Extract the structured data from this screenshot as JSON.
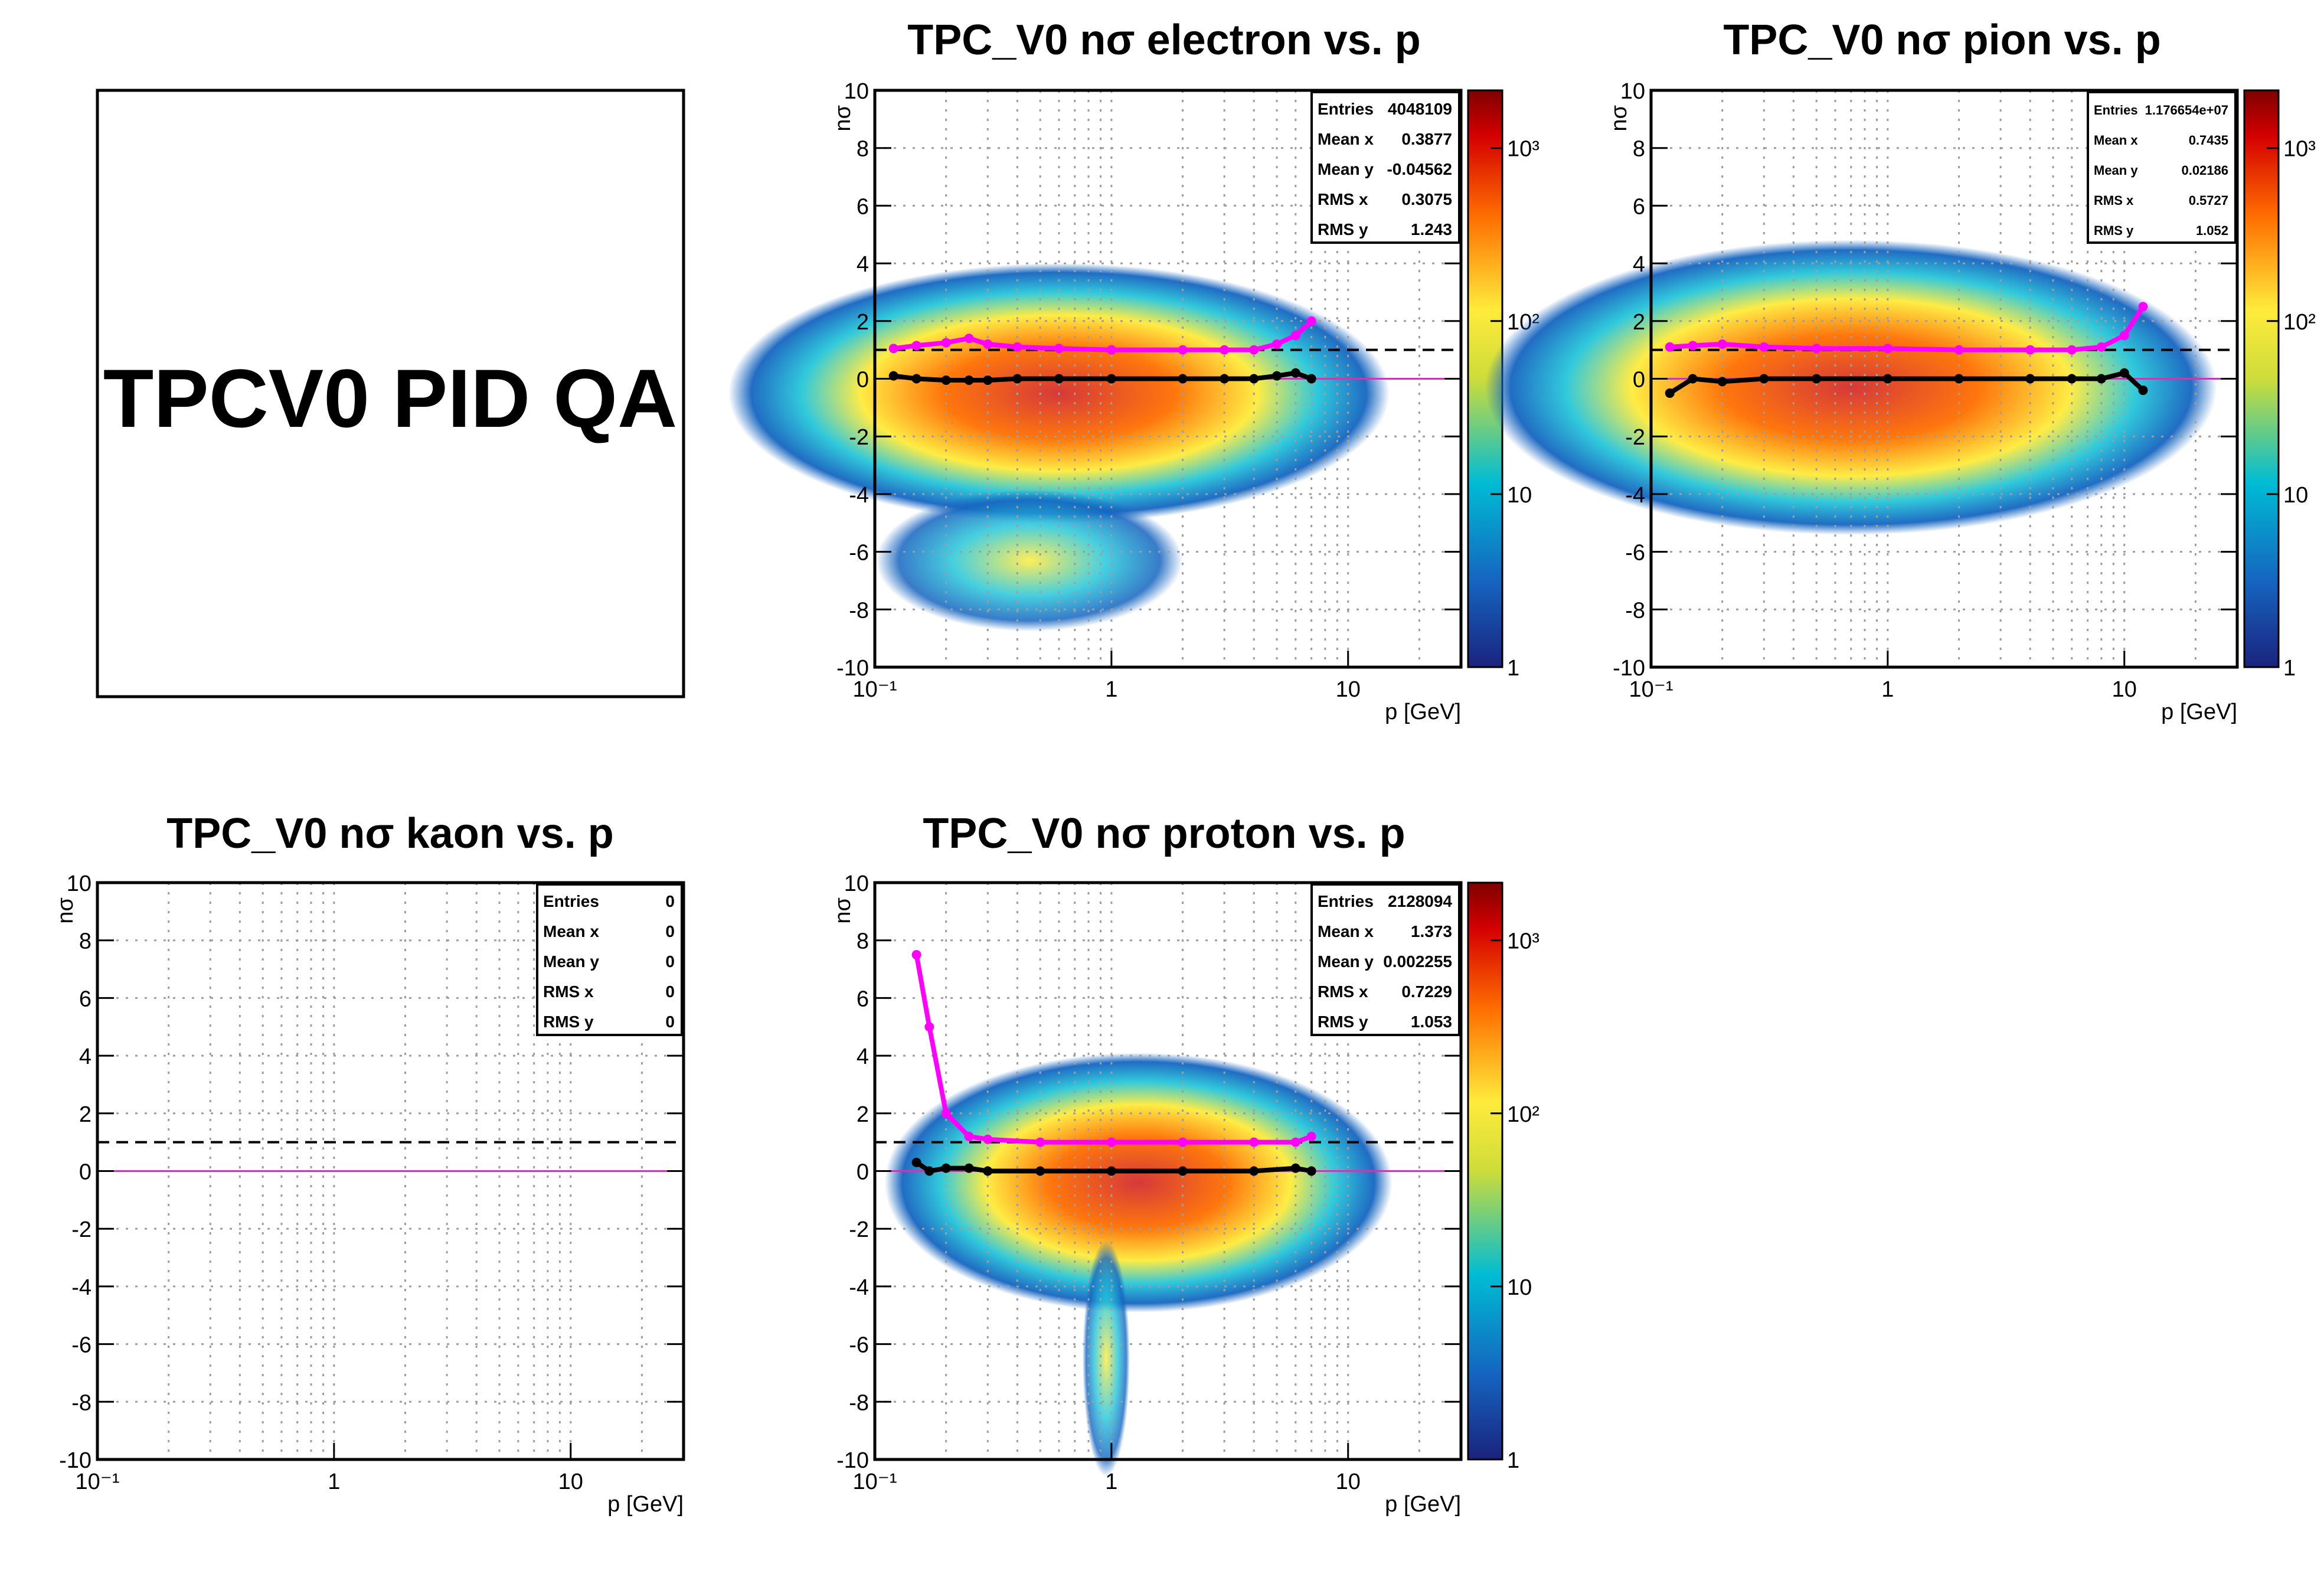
{
  "page_title_box": {
    "text": "TPCV0 PID QA"
  },
  "chart_data": [
    {
      "type": "heatmap",
      "id": "electron",
      "title": "TPC_V0 nσ electron vs. p",
      "xlabel": "p [GeV]",
      "ylabel": "nσ",
      "xscale": "log",
      "xlim": [
        0.1,
        30
      ],
      "ylim": [
        -10,
        10
      ],
      "x_tick_labels": [
        "10⁻¹",
        "1",
        "10"
      ],
      "y_tick_labels": [
        "-10",
        "-8",
        "-6",
        "-4",
        "-2",
        "0",
        "2",
        "4",
        "6",
        "8",
        "10"
      ],
      "grid": true,
      "colorbar": {
        "scale": "log",
        "labels": [
          "1",
          "10",
          "10²",
          "10³"
        ]
      },
      "reference_line_y": 1,
      "stats": [
        {
          "label": "Entries",
          "value": "4048109"
        },
        {
          "label": "Mean x",
          "value": "0.3877"
        },
        {
          "label": "Mean y",
          "value": "-0.04562"
        },
        {
          "label": "RMS x",
          "value": "0.3075"
        },
        {
          "label": "RMS y",
          "value": "1.243"
        }
      ],
      "series": [
        {
          "color": "#ff00ff",
          "x": [
            0.12,
            0.15,
            0.2,
            0.25,
            0.3,
            0.4,
            0.6,
            1,
            2,
            3,
            4,
            5,
            6,
            7
          ],
          "y": [
            1.05,
            1.15,
            1.25,
            1.4,
            1.2,
            1.1,
            1.05,
            1.0,
            1.0,
            1.0,
            1.0,
            1.2,
            1.5,
            2.0
          ]
        },
        {
          "color": "#000000",
          "x": [
            0.12,
            0.15,
            0.2,
            0.25,
            0.3,
            0.4,
            0.6,
            1,
            2,
            3,
            4,
            5,
            6,
            7
          ],
          "y": [
            0.1,
            0.0,
            -0.05,
            -0.05,
            -0.05,
            0.0,
            0.0,
            0.0,
            0.0,
            0.0,
            0.0,
            0.1,
            0.2,
            0.0
          ]
        }
      ]
    },
    {
      "type": "heatmap",
      "id": "pion",
      "title": "TPC_V0 nσ pion vs. p",
      "xlabel": "p [GeV]",
      "ylabel": "nσ",
      "xscale": "log",
      "xlim": [
        0.1,
        30
      ],
      "ylim": [
        -10,
        10
      ],
      "x_tick_labels": [
        "10⁻¹",
        "1",
        "10"
      ],
      "y_tick_labels": [
        "-10",
        "-8",
        "-6",
        "-4",
        "-2",
        "0",
        "2",
        "4",
        "6",
        "8",
        "10"
      ],
      "grid": true,
      "colorbar": {
        "scale": "log",
        "labels": [
          "1",
          "10",
          "10²",
          "10³"
        ]
      },
      "reference_line_y": 1,
      "stats": [
        {
          "label": "Entries",
          "value": "1.176654e+07"
        },
        {
          "label": "Mean x",
          "value": "0.7435"
        },
        {
          "label": "Mean y",
          "value": "0.02186"
        },
        {
          "label": "RMS x",
          "value": "0.5727"
        },
        {
          "label": "RMS y",
          "value": "1.052"
        }
      ],
      "series": [
        {
          "color": "#ff00ff",
          "x": [
            0.12,
            0.15,
            0.2,
            0.3,
            0.5,
            1,
            2,
            4,
            6,
            8,
            10,
            12
          ],
          "y": [
            1.1,
            1.15,
            1.2,
            1.1,
            1.05,
            1.05,
            1.0,
            1.0,
            1.0,
            1.1,
            1.5,
            2.5
          ]
        },
        {
          "color": "#000000",
          "x": [
            0.12,
            0.15,
            0.2,
            0.3,
            0.5,
            1,
            2,
            4,
            6,
            8,
            10,
            12
          ],
          "y": [
            -0.5,
            0.0,
            -0.1,
            0.0,
            0.0,
            0.0,
            0.0,
            0.0,
            0.0,
            0.0,
            0.2,
            -0.4
          ]
        }
      ]
    },
    {
      "type": "heatmap",
      "id": "kaon",
      "title": "TPC_V0 nσ kaon vs. p",
      "xlabel": "p [GeV]",
      "ylabel": "nσ",
      "xscale": "log",
      "xlim": [
        0.1,
        30
      ],
      "ylim": [
        -10,
        10
      ],
      "x_tick_labels": [
        "10⁻¹",
        "1",
        "10"
      ],
      "y_tick_labels": [
        "-10",
        "-8",
        "-6",
        "-4",
        "-2",
        "0",
        "2",
        "4",
        "6",
        "8",
        "10"
      ],
      "grid": true,
      "colorbar": null,
      "reference_line_y": 1,
      "stats": [
        {
          "label": "Entries",
          "value": "0"
        },
        {
          "label": "Mean x",
          "value": "0"
        },
        {
          "label": "Mean y",
          "value": "0"
        },
        {
          "label": "RMS x",
          "value": "0"
        },
        {
          "label": "RMS y",
          "value": "0"
        }
      ],
      "series": []
    },
    {
      "type": "heatmap",
      "id": "proton",
      "title": "TPC_V0 nσ proton vs. p",
      "xlabel": "p [GeV]",
      "ylabel": "nσ",
      "xscale": "log",
      "xlim": [
        0.1,
        30
      ],
      "ylim": [
        -10,
        10
      ],
      "x_tick_labels": [
        "10⁻¹",
        "1",
        "10"
      ],
      "y_tick_labels": [
        "-10",
        "-8",
        "-6",
        "-4",
        "-2",
        "0",
        "2",
        "4",
        "6",
        "8",
        "10"
      ],
      "grid": true,
      "colorbar": {
        "scale": "log",
        "labels": [
          "1",
          "10",
          "10²",
          "10³"
        ]
      },
      "reference_line_y": 1,
      "stats": [
        {
          "label": "Entries",
          "value": "2128094"
        },
        {
          "label": "Mean x",
          "value": "1.373"
        },
        {
          "label": "Mean y",
          "value": "0.002255"
        },
        {
          "label": "RMS x",
          "value": "0.7229"
        },
        {
          "label": "RMS y",
          "value": "1.053"
        }
      ],
      "series": [
        {
          "color": "#ff00ff",
          "x": [
            0.15,
            0.17,
            0.2,
            0.25,
            0.3,
            0.5,
            1,
            2,
            4,
            6,
            7
          ],
          "y": [
            7.5,
            5.0,
            2.0,
            1.2,
            1.1,
            1.0,
            1.0,
            1.0,
            1.0,
            1.0,
            1.2
          ]
        },
        {
          "color": "#000000",
          "x": [
            0.15,
            0.17,
            0.2,
            0.25,
            0.3,
            0.5,
            1,
            2,
            4,
            6,
            7
          ],
          "y": [
            0.3,
            0.0,
            0.1,
            0.1,
            0.0,
            0.0,
            0.0,
            0.0,
            0.0,
            0.1,
            0.0
          ]
        }
      ]
    }
  ]
}
